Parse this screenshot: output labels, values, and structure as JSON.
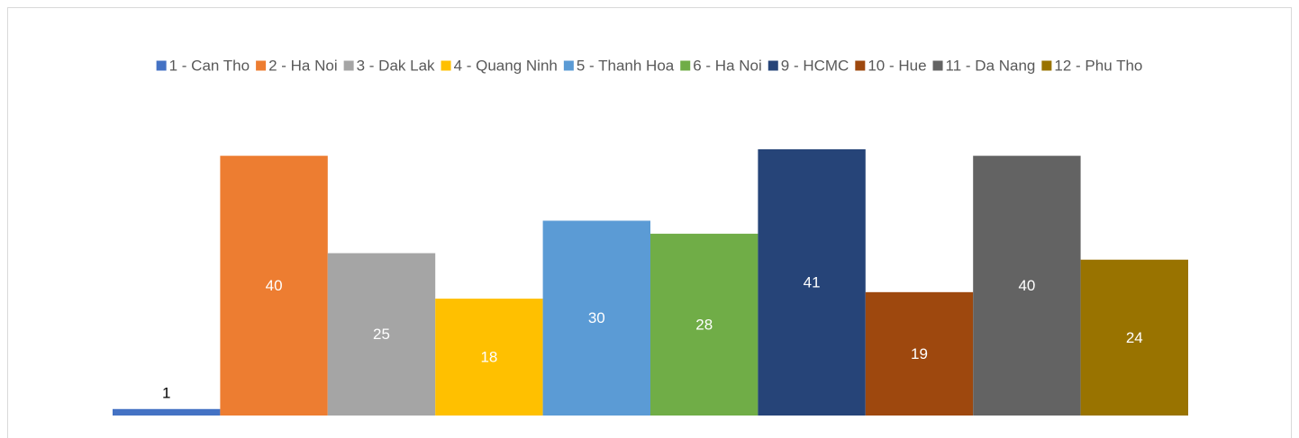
{
  "chart_data": {
    "type": "bar",
    "series": [
      {
        "name": "1 - Can Tho",
        "color": "#4472c4",
        "values": [
          1
        ]
      },
      {
        "name": "2 - Ha Noi",
        "color": "#ed7d31",
        "values": [
          40
        ]
      },
      {
        "name": "3 - Dak Lak",
        "color": "#a5a5a5",
        "values": [
          25
        ]
      },
      {
        "name": "4 - Quang Ninh",
        "color": "#ffc000",
        "values": [
          18
        ]
      },
      {
        "name": "5 - Thanh Hoa",
        "color": "#5b9bd5",
        "values": [
          30
        ]
      },
      {
        "name": "6 - Ha Noi",
        "color": "#70ad47",
        "values": [
          28
        ]
      },
      {
        "name": "9 - HCMC",
        "color": "#264478",
        "values": [
          41
        ]
      },
      {
        "name": "10 - Hue",
        "color": "#9e480e",
        "values": [
          19
        ]
      },
      {
        "name": "11 - Da Nang",
        "color": "#636363",
        "values": [
          40
        ]
      },
      {
        "name": "12 - Phu Tho",
        "color": "#997300",
        "values": [
          24
        ]
      }
    ],
    "legend": "top"
  }
}
